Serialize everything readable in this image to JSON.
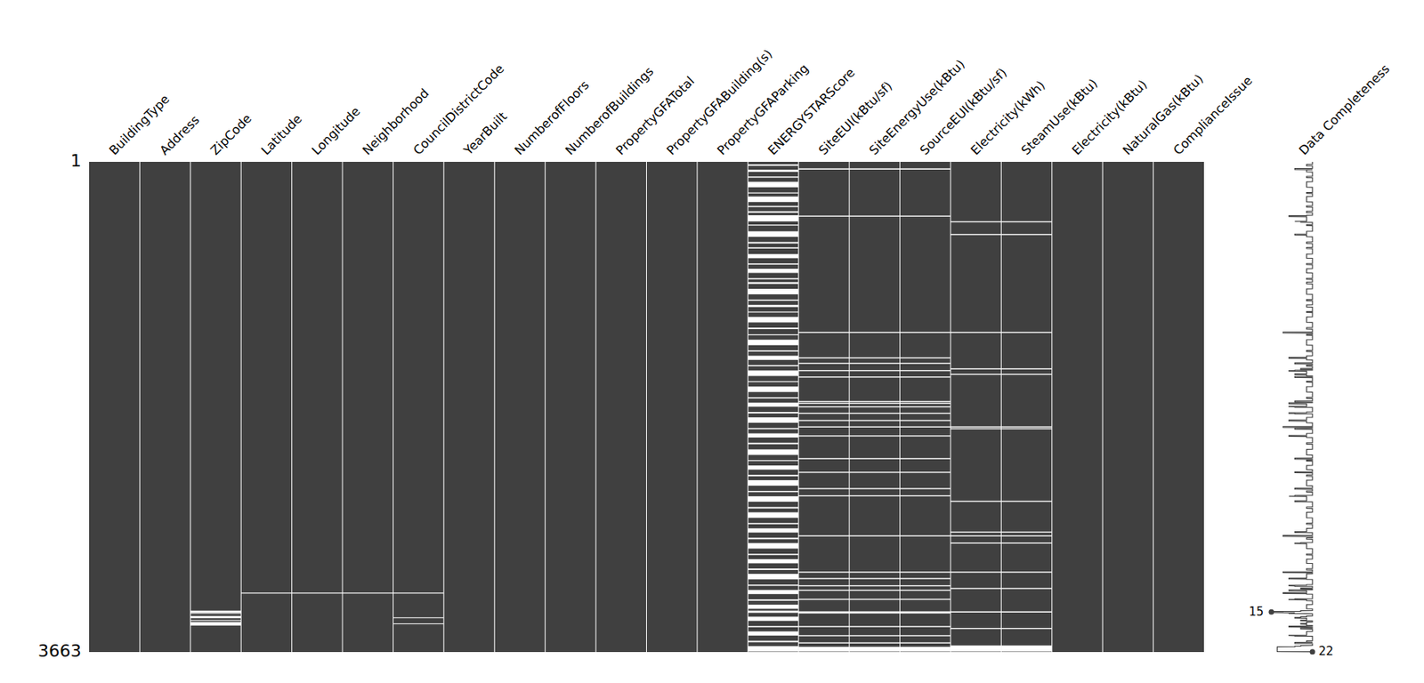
{
  "chart_data": {
    "type": "matrix",
    "columns": [
      "BuildingType",
      "Address",
      "ZipCode",
      "Latitude",
      "Longitude",
      "Neighborhood",
      "CouncilDistrictCode",
      "YearBuilt",
      "NumberofFloors",
      "NumberofBuildings",
      "PropertyGFATotal",
      "PropertyGFABuilding(s)",
      "PropertyGFAParking",
      "ENERGYSTARScore",
      "SiteEUI(kBtu/sf)",
      "SiteEnergyUse(kBtu)",
      "SourceEUI(kBtu/sf)",
      "Electricity(kWh)",
      "SteamUse(kBtu)",
      "Electricity(kBtu)",
      "NaturalGas(kBtu)",
      "ComplianceIssue"
    ],
    "ylim": [
      1,
      3663
    ],
    "yticks": [
      1,
      3663
    ],
    "color": "#404040",
    "missing": [
      [],
      [],
      [
        [
          3355,
          3370
        ],
        [
          3372,
          3376
        ],
        [
          3395,
          3410
        ],
        [
          3425,
          3430
        ],
        [
          3440,
          3465
        ]
      ],
      [
        [
          3220,
          3226
        ]
      ],
      [
        [
          3220,
          3226
        ]
      ],
      [
        [
          3220,
          3226
        ]
      ],
      [
        [
          3220,
          3226
        ],
        [
          3405,
          3410
        ],
        [
          3450,
          3455
        ]
      ],
      [],
      [],
      [],
      [],
      [],
      [],
      [
        [
          20,
          30
        ],
        [
          60,
          75
        ],
        [
          110,
          118
        ],
        [
          150,
          190
        ],
        [
          230,
          236
        ],
        [
          260,
          300
        ],
        [
          330,
          338
        ],
        [
          370,
          380
        ],
        [
          400,
          445
        ],
        [
          470,
          476
        ],
        [
          520,
          560
        ],
        [
          600,
          610
        ],
        [
          640,
          648
        ],
        [
          690,
          720
        ],
        [
          760,
          768
        ],
        [
          800,
          830
        ],
        [
          870,
          878
        ],
        [
          900,
          912
        ],
        [
          950,
          990
        ],
        [
          1030,
          1038
        ],
        [
          1070,
          1085
        ],
        [
          1120,
          1126
        ],
        [
          1160,
          1200
        ],
        [
          1240,
          1250
        ],
        [
          1290,
          1296
        ],
        [
          1330,
          1370
        ],
        [
          1410,
          1418
        ],
        [
          1450,
          1480
        ],
        [
          1520,
          1528
        ],
        [
          1560,
          1600
        ],
        [
          1640,
          1646
        ],
        [
          1680,
          1720
        ],
        [
          1760,
          1768
        ],
        [
          1800,
          1830
        ],
        [
          1870,
          1880
        ],
        [
          1910,
          1950
        ],
        [
          1990,
          1998
        ],
        [
          2030,
          2060
        ],
        [
          2100,
          2110
        ],
        [
          2150,
          2190
        ],
        [
          2230,
          2236
        ],
        [
          2270,
          2300
        ],
        [
          2340,
          2350
        ],
        [
          2380,
          2420
        ],
        [
          2460,
          2468
        ],
        [
          2500,
          2540
        ],
        [
          2580,
          2590
        ],
        [
          2620,
          2660
        ],
        [
          2700,
          2708
        ],
        [
          2740,
          2770
        ],
        [
          2810,
          2820
        ],
        [
          2850,
          2890
        ],
        [
          2930,
          2938
        ],
        [
          2970,
          3000
        ],
        [
          3040,
          3050
        ],
        [
          3080,
          3120
        ],
        [
          3160,
          3168
        ],
        [
          3200,
          3230
        ],
        [
          3270,
          3280
        ],
        [
          3310,
          3340
        ],
        [
          3355,
          3370
        ],
        [
          3400,
          3430
        ],
        [
          3470,
          3478
        ],
        [
          3510,
          3540
        ],
        [
          3580,
          3590
        ],
        [
          3620,
          3660
        ]
      ],
      [
        [
          50,
          58
        ],
        [
          403,
          410
        ],
        [
          1272,
          1279
        ],
        [
          1462,
          1469
        ],
        [
          1503,
          1510
        ],
        [
          1557,
          1564
        ],
        [
          1605,
          1612
        ],
        [
          1788,
          1795
        ],
        [
          1801,
          1808
        ],
        [
          1828,
          1835
        ],
        [
          1876,
          1883
        ],
        [
          1930,
          1937
        ],
        [
          1978,
          1985
        ],
        [
          2045,
          2052
        ],
        [
          2215,
          2222
        ],
        [
          2317,
          2324
        ],
        [
          2439,
          2446
        ],
        [
          2493,
          2500
        ],
        [
          2792,
          2799
        ],
        [
          3063,
          3070
        ],
        [
          3111,
          3118
        ],
        [
          3165,
          3172
        ],
        [
          3199,
          3206
        ],
        [
          3266,
          3273
        ],
        [
          3360,
          3375
        ],
        [
          3470,
          3477
        ],
        [
          3538,
          3545
        ],
        [
          3592,
          3599
        ],
        [
          3625,
          3660
        ]
      ],
      [
        [
          50,
          58
        ],
        [
          403,
          410
        ],
        [
          1272,
          1279
        ],
        [
          1462,
          1469
        ],
        [
          1503,
          1510
        ],
        [
          1557,
          1564
        ],
        [
          1605,
          1612
        ],
        [
          1788,
          1795
        ],
        [
          1801,
          1808
        ],
        [
          1828,
          1835
        ],
        [
          1876,
          1883
        ],
        [
          1930,
          1937
        ],
        [
          1978,
          1985
        ],
        [
          2045,
          2052
        ],
        [
          2215,
          2222
        ],
        [
          2317,
          2324
        ],
        [
          2439,
          2446
        ],
        [
          2493,
          2500
        ],
        [
          2792,
          2799
        ],
        [
          3063,
          3070
        ],
        [
          3111,
          3118
        ],
        [
          3165,
          3172
        ],
        [
          3199,
          3206
        ],
        [
          3266,
          3273
        ],
        [
          3360,
          3375
        ],
        [
          3470,
          3477
        ],
        [
          3538,
          3545
        ],
        [
          3592,
          3599
        ],
        [
          3625,
          3660
        ]
      ],
      [
        [
          50,
          58
        ],
        [
          403,
          410
        ],
        [
          1272,
          1279
        ],
        [
          1462,
          1469
        ],
        [
          1503,
          1510
        ],
        [
          1557,
          1564
        ],
        [
          1605,
          1612
        ],
        [
          1788,
          1795
        ],
        [
          1801,
          1808
        ],
        [
          1828,
          1835
        ],
        [
          1876,
          1883
        ],
        [
          1930,
          1937
        ],
        [
          1978,
          1985
        ],
        [
          2045,
          2052
        ],
        [
          2215,
          2222
        ],
        [
          2317,
          2324
        ],
        [
          2439,
          2446
        ],
        [
          2493,
          2500
        ],
        [
          2792,
          2799
        ],
        [
          3063,
          3070
        ],
        [
          3111,
          3118
        ],
        [
          3165,
          3172
        ],
        [
          3199,
          3206
        ],
        [
          3266,
          3273
        ],
        [
          3360,
          3375
        ],
        [
          3470,
          3477
        ],
        [
          3538,
          3545
        ],
        [
          3592,
          3599
        ],
        [
          3625,
          3660
        ]
      ],
      [
        [
          445,
          452
        ],
        [
          540,
          547
        ],
        [
          1272,
          1279
        ],
        [
          1544,
          1551
        ],
        [
          1585,
          1592
        ],
        [
          1978,
          1985
        ],
        [
          1991,
          1998
        ],
        [
          2534,
          2541
        ],
        [
          2764,
          2771
        ],
        [
          2792,
          2799
        ],
        [
          2846,
          2853
        ],
        [
          3063,
          3070
        ],
        [
          3185,
          3192
        ],
        [
          3360,
          3368
        ],
        [
          3484,
          3491
        ],
        [
          3615,
          3660
        ]
      ],
      [
        [
          445,
          452
        ],
        [
          540,
          547
        ],
        [
          1272,
          1279
        ],
        [
          1544,
          1551
        ],
        [
          1585,
          1592
        ],
        [
          1978,
          1985
        ],
        [
          1991,
          1998
        ],
        [
          2534,
          2541
        ],
        [
          2764,
          2771
        ],
        [
          2792,
          2799
        ],
        [
          2846,
          2853
        ],
        [
          3063,
          3070
        ],
        [
          3185,
          3192
        ],
        [
          3360,
          3368
        ],
        [
          3484,
          3491
        ],
        [
          3615,
          3660
        ]
      ],
      [],
      [],
      []
    ],
    "sparkline": {
      "label": "Data Completeness",
      "min": {
        "row": 3364,
        "value": 15
      },
      "max": {
        "row": 3663,
        "value": 22
      }
    }
  }
}
